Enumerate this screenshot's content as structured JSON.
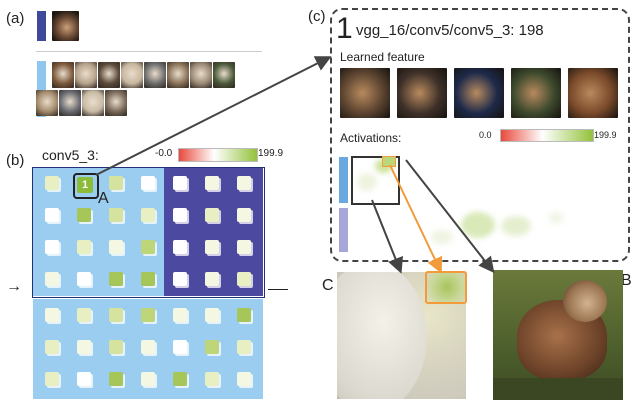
{
  "panels": {
    "a": "(a)",
    "b": "(b)",
    "c": "(c)"
  },
  "legend_b": {
    "layer": "conv5_3:",
    "min": "-0.0",
    "max": "199.9"
  },
  "selected_marker": "1",
  "letters": {
    "A": "A",
    "B": "B",
    "C": "C"
  },
  "detail": {
    "index": "1",
    "title": "vgg_16/conv5/conv5_3: 198",
    "learned_feature_label": "Learned feature",
    "activations_label": "Activations:",
    "legend_min": "0.0",
    "legend_max": "199.9"
  },
  "colors": {
    "class_bar_selected": "#3d4a9c",
    "class_bar_other": "#8fc6ee",
    "grid_light_block": "#9bcdf0",
    "grid_dark_block": "#4c4aa0",
    "highlight_orange": "#f39a3a",
    "legend_low": "#e84a3c",
    "legend_high": "#93c23a"
  },
  "icons": [
    "arrow-left-icon",
    "connector-arrow-icon"
  ]
}
